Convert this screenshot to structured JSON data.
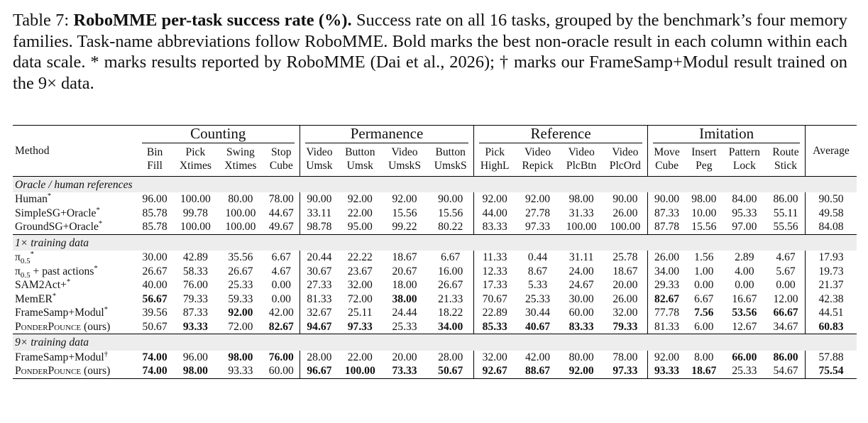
{
  "caption": {
    "label": "Table 7:",
    "bold_title": "RoboMME per-task success rate (%).",
    "text": " Success rate on all 16 tasks, grouped by the benchmark’s four memory families. Task-name abbreviations follow RoboMME. Bold marks the best non-oracle result in each column within each data scale. * marks results reported by RoboMME (Dai et al., 2026); † marks our FrameSamp+Modul result trained on the 9× data."
  },
  "table": {
    "method_header": "Method",
    "average_header": "Average",
    "families": [
      "Counting",
      "Permanence",
      "Reference",
      "Imitation"
    ],
    "columns": [
      [
        "Bin",
        "Fill"
      ],
      [
        "Pick",
        "Xtimes"
      ],
      [
        "Swing",
        "Xtimes"
      ],
      [
        "Stop",
        "Cube"
      ],
      [
        "Video",
        "Umsk"
      ],
      [
        "Button",
        "Umsk"
      ],
      [
        "Video",
        "UmskS"
      ],
      [
        "Button",
        "UmskS"
      ],
      [
        "Pick",
        "HighL"
      ],
      [
        "Video",
        "Repick"
      ],
      [
        "Video",
        "PlcBtn"
      ],
      [
        "Video",
        "PlcOrd"
      ],
      [
        "Move",
        "Cube"
      ],
      [
        "Insert",
        "Peg"
      ],
      [
        "Pattern",
        "Lock"
      ],
      [
        "Route",
        "Stick"
      ]
    ],
    "sections": [
      {
        "title": "Oracle / human references",
        "rows": [
          {
            "name": "Human",
            "mark": "*",
            "values": [
              "96.00",
              "100.00",
              "80.00",
              "78.00",
              "90.00",
              "92.00",
              "92.00",
              "90.00",
              "92.00",
              "92.00",
              "98.00",
              "90.00",
              "90.00",
              "98.00",
              "84.00",
              "86.00"
            ],
            "avg": "90.50",
            "bold": []
          },
          {
            "name": "SimpleSG+Oracle",
            "mark": "*",
            "values": [
              "85.78",
              "99.78",
              "100.00",
              "44.67",
              "33.11",
              "22.00",
              "15.56",
              "15.56",
              "44.00",
              "27.78",
              "31.33",
              "26.00",
              "87.33",
              "10.00",
              "95.33",
              "55.11"
            ],
            "avg": "49.58",
            "bold": []
          },
          {
            "name": "GroundSG+Oracle",
            "mark": "*",
            "values": [
              "85.78",
              "100.00",
              "100.00",
              "49.67",
              "98.78",
              "95.00",
              "99.22",
              "80.22",
              "83.33",
              "97.33",
              "100.00",
              "100.00",
              "87.78",
              "15.56",
              "97.00",
              "55.56"
            ],
            "avg": "84.08",
            "bold": []
          }
        ]
      },
      {
        "title": "1× training data",
        "rows": [
          {
            "name": "π0.5",
            "name_base": "π",
            "name_sub": "0.5",
            "name_tail": "",
            "mark": "*",
            "values": [
              "30.00",
              "42.89",
              "35.56",
              "6.67",
              "20.44",
              "22.22",
              "18.67",
              "6.67",
              "11.33",
              "0.44",
              "31.11",
              "25.78",
              "26.00",
              "1.56",
              "2.89",
              "4.67"
            ],
            "avg": "17.93",
            "bold": []
          },
          {
            "name": "π0.5 + past actions",
            "name_base": "π",
            "name_sub": "0.5",
            "name_tail": " + past actions",
            "mark": "*",
            "values": [
              "26.67",
              "58.33",
              "26.67",
              "4.67",
              "30.67",
              "23.67",
              "20.67",
              "16.00",
              "12.33",
              "8.67",
              "24.00",
              "18.67",
              "34.00",
              "1.00",
              "4.00",
              "5.67"
            ],
            "avg": "19.73",
            "bold": []
          },
          {
            "name": "SAM2Act+",
            "mark": "*",
            "values": [
              "40.00",
              "76.00",
              "25.33",
              "0.00",
              "27.33",
              "32.00",
              "18.00",
              "26.67",
              "17.33",
              "5.33",
              "24.67",
              "20.00",
              "29.33",
              "0.00",
              "0.00",
              "0.00"
            ],
            "avg": "21.37",
            "bold": []
          },
          {
            "name": "MemER",
            "mark": "*",
            "values": [
              "56.67",
              "79.33",
              "59.33",
              "0.00",
              "81.33",
              "72.00",
              "38.00",
              "21.33",
              "70.67",
              "25.33",
              "30.00",
              "26.00",
              "82.67",
              "6.67",
              "16.67",
              "12.00"
            ],
            "avg": "42.38",
            "bold": [
              0,
              6,
              12
            ]
          },
          {
            "name": "FrameSamp+Modul",
            "mark": "*",
            "values": [
              "39.56",
              "87.33",
              "92.00",
              "42.00",
              "32.67",
              "25.11",
              "24.44",
              "18.22",
              "22.89",
              "30.44",
              "60.00",
              "32.00",
              "77.78",
              "7.56",
              "53.56",
              "66.67"
            ],
            "avg": "44.51",
            "bold": [
              2,
              13,
              14,
              15
            ]
          },
          {
            "name": "PONDERPOUNCE (ours)",
            "name_sc": "PonderPounce",
            "name_tail": " (ours)",
            "mark": "",
            "values": [
              "50.67",
              "93.33",
              "72.00",
              "82.67",
              "94.67",
              "97.33",
              "25.33",
              "34.00",
              "85.33",
              "40.67",
              "83.33",
              "79.33",
              "81.33",
              "6.00",
              "12.67",
              "34.67"
            ],
            "avg": "60.83",
            "bold": [
              1,
              3,
              4,
              5,
              7,
              8,
              9,
              10,
              11
            ],
            "avg_bold": true
          }
        ]
      },
      {
        "title": "9× training data",
        "rows": [
          {
            "name": "FrameSamp+Modul",
            "mark": "†",
            "values": [
              "74.00",
              "96.00",
              "98.00",
              "76.00",
              "28.00",
              "22.00",
              "20.00",
              "28.00",
              "32.00",
              "42.00",
              "80.00",
              "78.00",
              "92.00",
              "8.00",
              "66.00",
              "86.00"
            ],
            "avg": "57.88",
            "bold": [
              0,
              2,
              3,
              14,
              15
            ]
          },
          {
            "name": "PONDERPOUNCE (ours)",
            "name_sc": "PonderPounce",
            "name_tail": " (ours)",
            "mark": "",
            "values": [
              "74.00",
              "98.00",
              "93.33",
              "60.00",
              "96.67",
              "100.00",
              "73.33",
              "50.67",
              "92.67",
              "88.67",
              "92.00",
              "97.33",
              "93.33",
              "18.67",
              "25.33",
              "54.67"
            ],
            "avg": "75.54",
            "bold": [
              0,
              1,
              4,
              5,
              6,
              7,
              8,
              9,
              10,
              11,
              12,
              13
            ],
            "avg_bold": true
          }
        ]
      }
    ]
  }
}
